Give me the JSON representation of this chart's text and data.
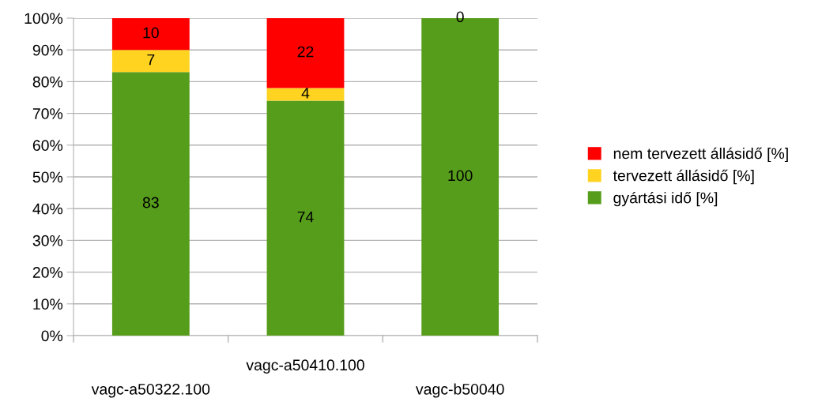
{
  "chart_data": {
    "type": "bar",
    "stacked": true,
    "categories": [
      "vagc-a50322.100",
      "vagc-a50410.100",
      "vagc-b50040"
    ],
    "series": [
      {
        "name": "gyártási idő [%]",
        "color": "#579d1c",
        "values": [
          83,
          74,
          100
        ],
        "value_labels": [
          "83",
          "74",
          "100"
        ]
      },
      {
        "name": "tervezett állásidő [%]",
        "color": "#ffd320",
        "values": [
          7,
          4,
          0
        ],
        "value_labels": [
          "7",
          "4",
          null
        ]
      },
      {
        "name": "nem tervezett állásidő [%]",
        "color": "#ff0000",
        "values": [
          10,
          22,
          0
        ],
        "value_labels": [
          "10",
          "22",
          "0"
        ]
      }
    ],
    "ylim": [
      0,
      100
    ],
    "yticks": [
      {
        "value": 0,
        "label": "0%"
      },
      {
        "value": 10,
        "label": "10%"
      },
      {
        "value": 20,
        "label": "20%"
      },
      {
        "value": 30,
        "label": "30%"
      },
      {
        "value": 40,
        "label": "40%"
      },
      {
        "value": 50,
        "label": "50%"
      },
      {
        "value": 60,
        "label": "60%"
      },
      {
        "value": 70,
        "label": "70%"
      },
      {
        "value": 80,
        "label": "80%"
      },
      {
        "value": 90,
        "label": "90%"
      },
      {
        "value": 100,
        "label": "100%"
      }
    ],
    "grid": "y",
    "legend": "right"
  }
}
